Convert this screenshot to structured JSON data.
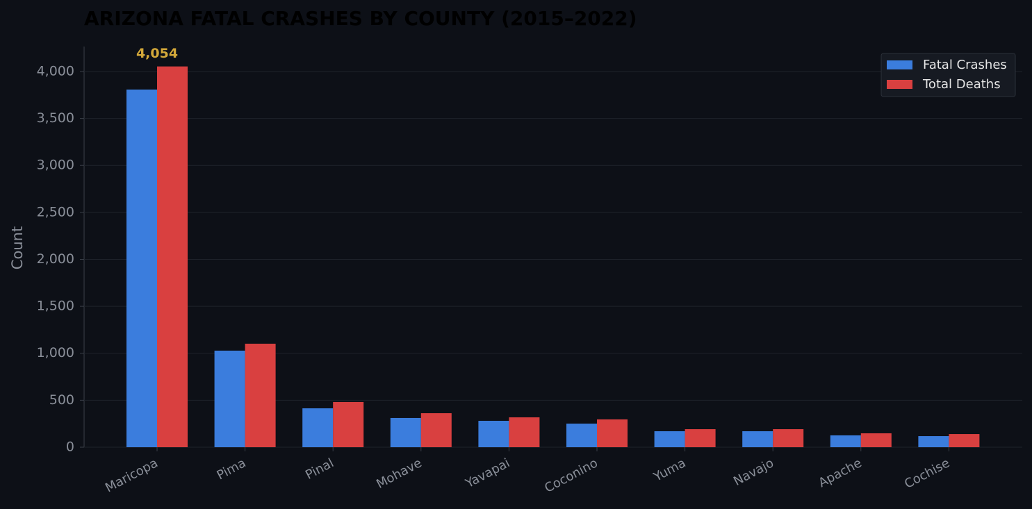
{
  "chart_data": {
    "type": "bar",
    "title": "ARIZONA FATAL CRASHES BY COUNTY (2015–2022)",
    "y_label": "Count",
    "categories": [
      "Maricopa",
      "Pima",
      "Pinal",
      "Mohave",
      "Yavapai",
      "Coconino",
      "Yuma",
      "Navajo",
      "Apache",
      "Cochise"
    ],
    "series": [
      {
        "name": "Fatal Crashes",
        "color": "#3b7ddd",
        "values": [
          3808,
          1028,
          414,
          311,
          281,
          251,
          170,
          170,
          126,
          118
        ]
      },
      {
        "name": "Total Deaths",
        "color": "#d94040",
        "values": [
          4054,
          1102,
          481,
          362,
          318,
          296,
          192,
          192,
          148,
          140
        ],
        "value_labels": [
          "4,054",
          null,
          null,
          null,
          null,
          null,
          null,
          null,
          null,
          null
        ]
      }
    ],
    "ylim": [
      0,
      4266
    ],
    "yticks": [
      0,
      500,
      {
        "value": 1000,
        "label": "1,000"
      },
      {
        "value": 1500,
        "label": "1,500"
      },
      {
        "value": 2000,
        "label": "2,000"
      },
      {
        "value": 2500,
        "label": "2,500"
      },
      {
        "value": 3000,
        "label": "3,000"
      },
      {
        "value": 3500,
        "label": "3,500"
      },
      {
        "value": 4000,
        "label": "4,000"
      }
    ],
    "grid": true,
    "legend": "upper right"
  }
}
